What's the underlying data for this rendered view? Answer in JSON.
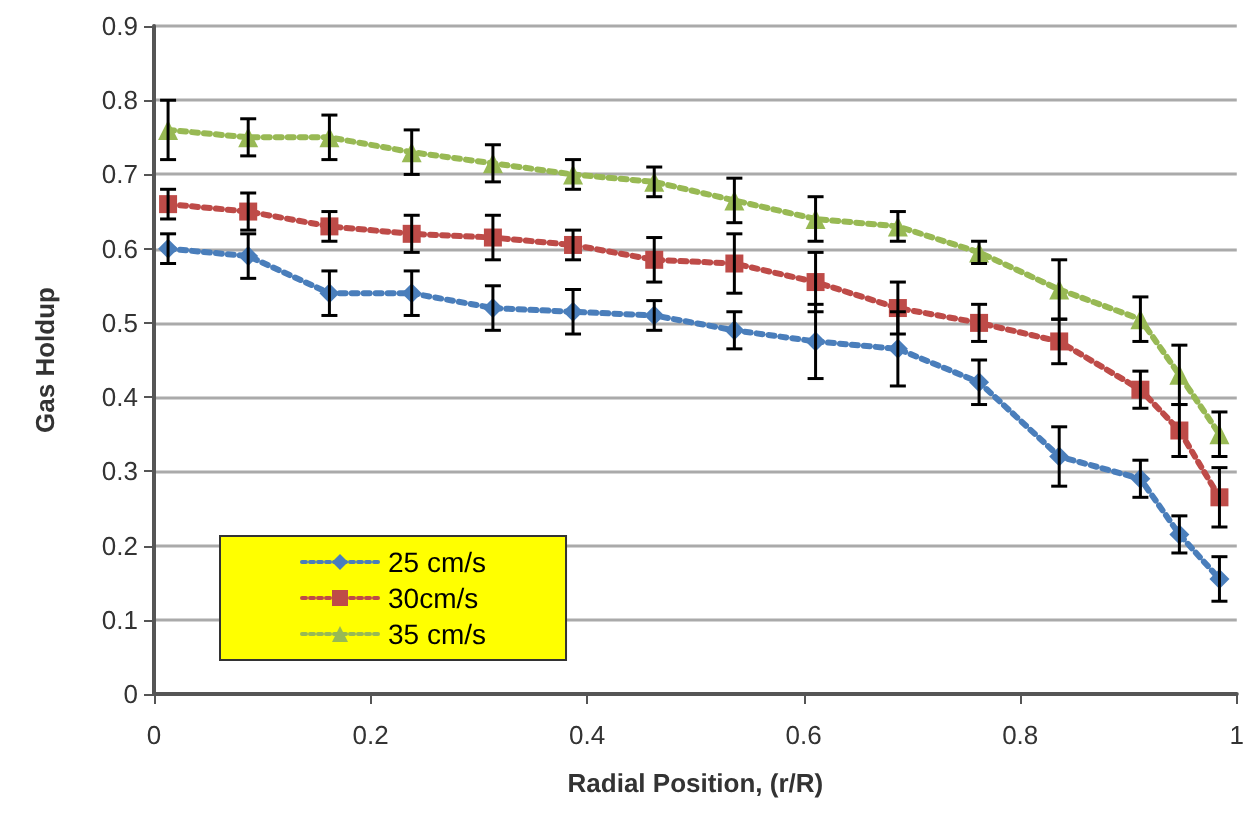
{
  "chart_data": {
    "type": "line",
    "xlabel": "Radial Position, (r/R)",
    "ylabel": "Gas Holdup",
    "x": [
      0.013,
      0.087,
      0.162,
      0.238,
      0.313,
      0.387,
      0.462,
      0.536,
      0.611,
      0.687,
      0.762,
      0.836,
      0.911,
      0.947,
      0.984
    ],
    "xlim": [
      0,
      1
    ],
    "xticks": [
      0,
      0.2,
      0.4,
      0.6,
      0.8,
      1
    ],
    "ylim": [
      0,
      0.9
    ],
    "yticks": [
      0,
      0.1,
      0.2,
      0.3,
      0.4,
      0.5,
      0.6,
      0.7,
      0.8,
      0.9
    ],
    "grid": "y",
    "legend": "bottom left",
    "line_style": "dotted",
    "series": [
      {
        "name": "25 cm/s",
        "color": "#4a7ebb",
        "marker": "diamond",
        "values": [
          0.6,
          0.59,
          0.54,
          0.54,
          0.52,
          0.515,
          0.51,
          0.49,
          0.475,
          0.465,
          0.42,
          0.32,
          0.29,
          0.215,
          0.155
        ],
        "errors": [
          0.02,
          0.03,
          0.03,
          0.03,
          0.03,
          0.03,
          0.02,
          0.025,
          0.05,
          0.05,
          0.03,
          0.04,
          0.025,
          0.025,
          0.03
        ]
      },
      {
        "name": "30cm/s",
        "color": "#be4b48",
        "marker": "square",
        "values": [
          0.66,
          0.65,
          0.63,
          0.62,
          0.615,
          0.605,
          0.585,
          0.58,
          0.555,
          0.52,
          0.5,
          0.475,
          0.41,
          0.355,
          0.265
        ],
        "errors": [
          0.02,
          0.025,
          0.02,
          0.025,
          0.03,
          0.02,
          0.03,
          0.04,
          0.04,
          0.035,
          0.025,
          0.03,
          0.025,
          0.035,
          0.04
        ]
      },
      {
        "name": "35 cm/s",
        "color": "#98b954",
        "marker": "triangle",
        "values": [
          0.76,
          0.75,
          0.75,
          0.73,
          0.715,
          0.7,
          0.69,
          0.665,
          0.64,
          0.63,
          0.595,
          0.545,
          0.505,
          0.43,
          0.35
        ],
        "errors": [
          0.04,
          0.025,
          0.03,
          0.03,
          0.025,
          0.02,
          0.02,
          0.03,
          0.03,
          0.02,
          0.015,
          0.04,
          0.03,
          0.04,
          0.03
        ]
      }
    ]
  }
}
